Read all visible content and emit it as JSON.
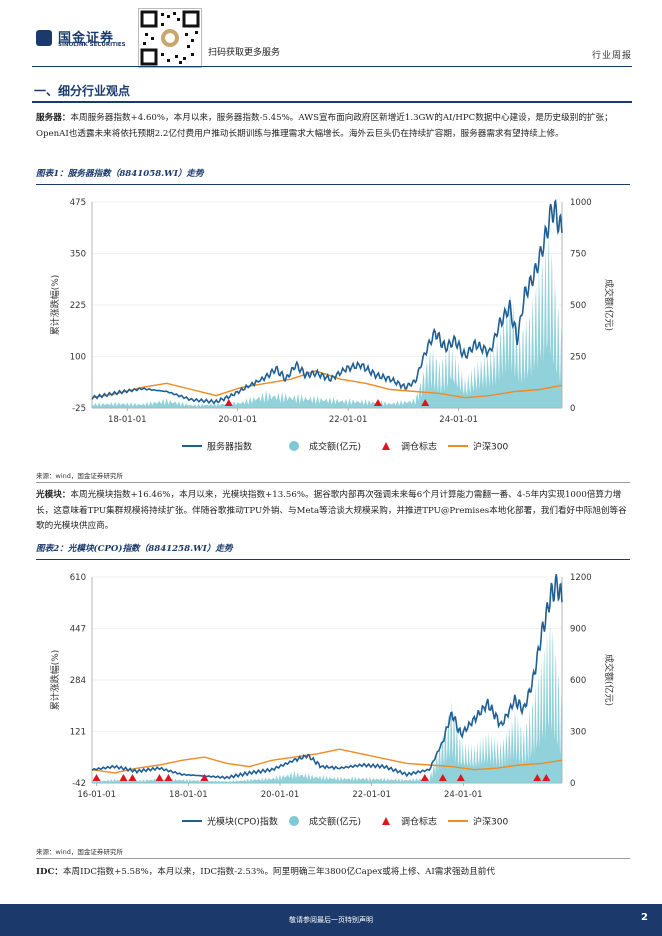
{
  "header": {
    "logo_cn": "国金证券",
    "logo_en": "SINOLINK SECURITIES",
    "scan_text": "扫码获取更多服务",
    "report_type": "行业周报"
  },
  "section_title": "一、细分行业观点",
  "paragraphs": {
    "server_label": "服务器：",
    "server_text": "本周服务器指数+4.60%，本月以来，服务器指数-5.45%。AWS宣布面向政府区新增近1.3GW的AI/HPC数据中心建设，是历史级别的扩张；OpenAI也透露未来将依托预期2.2亿付费用户推动长期训练与推理需求大幅增长。海外云巨头仍在持续扩容期，服务器需求有望持续上修。",
    "optical_label": "光模块：",
    "optical_text": "本周光模块指数+16.46%，本月以来，光模块指数+13.56%。据谷歌内部再次强调未来每6个月计算能力需翻一番、4-5年内实现1000倍算力增长，这意味着TPU集群规模将持续扩张。伴随谷歌推动TPU外销、与Meta等洽谈大规模采购，并推进TPU@Premises本地化部署，我们看好中际旭创等谷歌的光模块供应商。",
    "idc_label": "IDC：",
    "idc_text": "本周IDC指数+5.58%，本月以来，IDC指数-2.53%。阿里明确三年3800亿Capex或将上修、AI需求强劲且前代"
  },
  "figure1": {
    "title": "图表1：服务器指数（8841058.WI）走势",
    "source": "来源：wind，国金证券研究所"
  },
  "figure2": {
    "title": "图表2：光模块(CPO)指数（8841258.WI）走势",
    "source": "来源：wind，国金证券研究所"
  },
  "chart_data": [
    {
      "type": "line",
      "left_ylabel": "累计涨跌幅(%)",
      "right_ylabel": "成交额(亿元)",
      "left_ticks": [
        -25,
        100,
        225,
        350,
        475
      ],
      "right_ticks": [
        0,
        250,
        500,
        750,
        1000
      ],
      "x_ticks": [
        "18-01-01",
        "20-01-01",
        "22-01-01",
        "24-01-01"
      ],
      "legend": [
        "服务器指数",
        "成交额(亿元)",
        "调仓标志",
        "沪深300"
      ],
      "colors": {
        "index": "#1f5f94",
        "volume": "#7ec9d3",
        "marker": "#e0141e",
        "csi300": "#f08a24"
      },
      "legend_position": "bottom",
      "x_range": [
        2016.5,
        2025.95
      ],
      "ylim_left": [
        -25,
        475
      ],
      "ylim_right": [
        0,
        1000
      ],
      "index_series": [
        [
          2016.5,
          0
        ],
        [
          2017.0,
          12
        ],
        [
          2017.5,
          22
        ],
        [
          2018.0,
          15
        ],
        [
          2018.5,
          -5
        ],
        [
          2019.0,
          -10
        ],
        [
          2019.3,
          5
        ],
        [
          2019.6,
          25
        ],
        [
          2020.0,
          50
        ],
        [
          2020.2,
          70
        ],
        [
          2020.4,
          45
        ],
        [
          2020.6,
          80
        ],
        [
          2020.8,
          55
        ],
        [
          2021.0,
          60
        ],
        [
          2021.3,
          45
        ],
        [
          2021.6,
          70
        ],
        [
          2021.9,
          80
        ],
        [
          2022.2,
          55
        ],
        [
          2022.5,
          45
        ],
        [
          2022.8,
          25
        ],
        [
          2023.0,
          40
        ],
        [
          2023.2,
          110
        ],
        [
          2023.4,
          160
        ],
        [
          2023.6,
          120
        ],
        [
          2023.8,
          140
        ],
        [
          2024.0,
          100
        ],
        [
          2024.2,
          130
        ],
        [
          2024.5,
          110
        ],
        [
          2024.7,
          180
        ],
        [
          2024.9,
          220
        ],
        [
          2025.05,
          140
        ],
        [
          2025.2,
          250
        ],
        [
          2025.4,
          300
        ],
        [
          2025.6,
          380
        ],
        [
          2025.75,
          460
        ],
        [
          2025.85,
          440
        ],
        [
          2025.95,
          400
        ]
      ],
      "csi300_series": [
        [
          2016.5,
          0
        ],
        [
          2017.0,
          10
        ],
        [
          2017.5,
          25
        ],
        [
          2018.0,
          35
        ],
        [
          2018.5,
          20
        ],
        [
          2019.0,
          5
        ],
        [
          2019.5,
          25
        ],
        [
          2020.0,
          35
        ],
        [
          2020.5,
          45
        ],
        [
          2021.0,
          65
        ],
        [
          2021.5,
          45
        ],
        [
          2022.0,
          35
        ],
        [
          2022.5,
          20
        ],
        [
          2023.0,
          15
        ],
        [
          2023.5,
          10
        ],
        [
          2024.0,
          0
        ],
        [
          2024.5,
          5
        ],
        [
          2025.0,
          15
        ],
        [
          2025.5,
          20
        ],
        [
          2025.95,
          30
        ]
      ],
      "volume_series": [
        [
          2016.5,
          20
        ],
        [
          2017.0,
          25
        ],
        [
          2017.5,
          20
        ],
        [
          2018.0,
          40
        ],
        [
          2018.5,
          15
        ],
        [
          2019.0,
          20
        ],
        [
          2019.5,
          30
        ],
        [
          2020.0,
          70
        ],
        [
          2020.5,
          60
        ],
        [
          2021.0,
          50
        ],
        [
          2021.5,
          40
        ],
        [
          2022.0,
          35
        ],
        [
          2022.5,
          25
        ],
        [
          2023.0,
          40
        ],
        [
          2023.3,
          250
        ],
        [
          2023.5,
          180
        ],
        [
          2023.7,
          260
        ],
        [
          2024.0,
          120
        ],
        [
          2024.3,
          200
        ],
        [
          2024.6,
          250
        ],
        [
          2024.9,
          480
        ],
        [
          2025.1,
          300
        ],
        [
          2025.3,
          380
        ],
        [
          2025.5,
          560
        ],
        [
          2025.7,
          700
        ],
        [
          2025.85,
          420
        ],
        [
          2025.95,
          300
        ]
      ],
      "markers": [
        2019.25,
        2022.25,
        2023.2
      ]
    },
    {
      "type": "line",
      "left_ylabel": "累计涨跌幅(%)",
      "right_ylabel": "成交额(亿元)",
      "left_ticks": [
        -42,
        121,
        284,
        447,
        610
      ],
      "right_ticks": [
        0,
        300,
        600,
        900,
        1200
      ],
      "x_ticks": [
        "16-01-01",
        "18-01-01",
        "20-01-01",
        "22-01-01",
        "24-01-01"
      ],
      "legend": [
        "光模块(CPO)指数",
        "成交额(亿元)",
        "调仓标志",
        "沪深300"
      ],
      "colors": {
        "index": "#1f5f94",
        "volume": "#7ec9d3",
        "marker": "#e0141e",
        "csi300": "#f08a24"
      },
      "legend_position": "bottom",
      "x_range": [
        2015.5,
        2025.95
      ],
      "ylim_left": [
        -42,
        610
      ],
      "ylim_right": [
        0,
        1200
      ],
      "index_series": [
        [
          2015.5,
          0
        ],
        [
          2016.0,
          10
        ],
        [
          2016.5,
          -5
        ],
        [
          2017.0,
          5
        ],
        [
          2017.5,
          -15
        ],
        [
          2018.0,
          -20
        ],
        [
          2018.5,
          -25
        ],
        [
          2019.0,
          -10
        ],
        [
          2019.5,
          0
        ],
        [
          2020.0,
          30
        ],
        [
          2020.3,
          45
        ],
        [
          2020.6,
          10
        ],
        [
          2021.0,
          5
        ],
        [
          2021.5,
          15
        ],
        [
          2022.0,
          10
        ],
        [
          2022.5,
          -15
        ],
        [
          2023.0,
          0
        ],
        [
          2023.3,
          90
        ],
        [
          2023.5,
          180
        ],
        [
          2023.7,
          110
        ],
        [
          2024.0,
          160
        ],
        [
          2024.3,
          210
        ],
        [
          2024.6,
          140
        ],
        [
          2024.9,
          220
        ],
        [
          2025.1,
          190
        ],
        [
          2025.3,
          280
        ],
        [
          2025.5,
          430
        ],
        [
          2025.7,
          550
        ],
        [
          2025.85,
          590
        ],
        [
          2025.95,
          530
        ]
      ],
      "csi300_series": [
        [
          2015.5,
          0
        ],
        [
          2016.0,
          -10
        ],
        [
          2016.5,
          5
        ],
        [
          2017.0,
          15
        ],
        [
          2017.5,
          30
        ],
        [
          2018.0,
          40
        ],
        [
          2018.5,
          20
        ],
        [
          2019.0,
          10
        ],
        [
          2019.5,
          30
        ],
        [
          2020.0,
          40
        ],
        [
          2020.5,
          50
        ],
        [
          2021.0,
          65
        ],
        [
          2021.5,
          50
        ],
        [
          2022.0,
          35
        ],
        [
          2022.5,
          20
        ],
        [
          2023.0,
          15
        ],
        [
          2023.5,
          10
        ],
        [
          2024.0,
          0
        ],
        [
          2024.5,
          5
        ],
        [
          2025.0,
          15
        ],
        [
          2025.5,
          20
        ],
        [
          2025.95,
          30
        ]
      ],
      "volume_series": [
        [
          2015.5,
          10
        ],
        [
          2016.0,
          20
        ],
        [
          2016.5,
          15
        ],
        [
          2017.0,
          25
        ],
        [
          2017.5,
          20
        ],
        [
          2018.0,
          15
        ],
        [
          2018.5,
          10
        ],
        [
          2019.0,
          20
        ],
        [
          2019.5,
          30
        ],
        [
          2020.0,
          60
        ],
        [
          2020.5,
          40
        ],
        [
          2021.0,
          30
        ],
        [
          2021.5,
          30
        ],
        [
          2022.0,
          25
        ],
        [
          2022.5,
          20
        ],
        [
          2023.0,
          30
        ],
        [
          2023.3,
          250
        ],
        [
          2023.5,
          400
        ],
        [
          2023.7,
          200
        ],
        [
          2024.0,
          180
        ],
        [
          2024.3,
          250
        ],
        [
          2024.6,
          200
        ],
        [
          2024.9,
          350
        ],
        [
          2025.1,
          250
        ],
        [
          2025.3,
          400
        ],
        [
          2025.5,
          600
        ],
        [
          2025.7,
          800
        ],
        [
          2025.85,
          550
        ],
        [
          2025.95,
          400
        ]
      ],
      "markers": [
        2015.6,
        2016.2,
        2016.4,
        2017.0,
        2017.2,
        2018.0,
        2022.9,
        2023.3,
        2023.7,
        2025.4,
        2025.6
      ]
    }
  ]
}
